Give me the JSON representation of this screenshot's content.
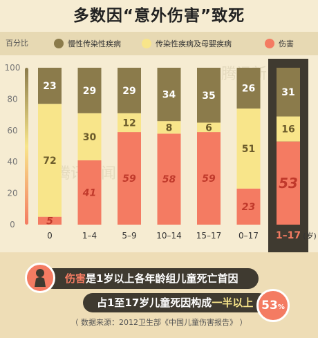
{
  "title": "多数因“意外伤害”致死",
  "legend": {
    "label": "百分比",
    "items": [
      {
        "name": "慢性传染性疾病",
        "color": "#8b7b4b"
      },
      {
        "name": "传染性疾病及母婴疾病",
        "color": "#f8e58a"
      },
      {
        "name": "伤害",
        "color": "#f47b62"
      }
    ]
  },
  "chart_data": {
    "type": "bar",
    "stacked": true,
    "categories": [
      "0",
      "1–4",
      "5–9",
      "10–14",
      "15–17",
      "0–17",
      "1–17"
    ],
    "x_unit": "(岁)",
    "highlight_category": "1–17",
    "ylim": [
      0,
      100
    ],
    "yticks": [
      0,
      20,
      40,
      60,
      80,
      100
    ],
    "series": [
      {
        "name": "伤害",
        "color": "#f47b62",
        "values": [
          5,
          41,
          59,
          58,
          59,
          23,
          53
        ]
      },
      {
        "name": "传染性疾病及母婴疾病",
        "color": "#f8e58a",
        "values": [
          72,
          30,
          12,
          8,
          6,
          51,
          16
        ]
      },
      {
        "name": "慢性传染性疾病",
        "color": "#8b7b4b",
        "values": [
          23,
          29,
          29,
          34,
          35,
          26,
          31
        ]
      }
    ]
  },
  "watermark": "腾讯新闻",
  "callout1": {
    "highlight": "伤害",
    "rest": "是1岁以上各年龄组儿童死亡首因"
  },
  "callout2": {
    "pre": "占1至17岁儿童死因构成",
    "highlight": "一半以上"
  },
  "percent": {
    "value": "53",
    "unit": "%"
  },
  "source": "（ 数据来源：2012卫生部《中国儿童伤害报告》 ）"
}
